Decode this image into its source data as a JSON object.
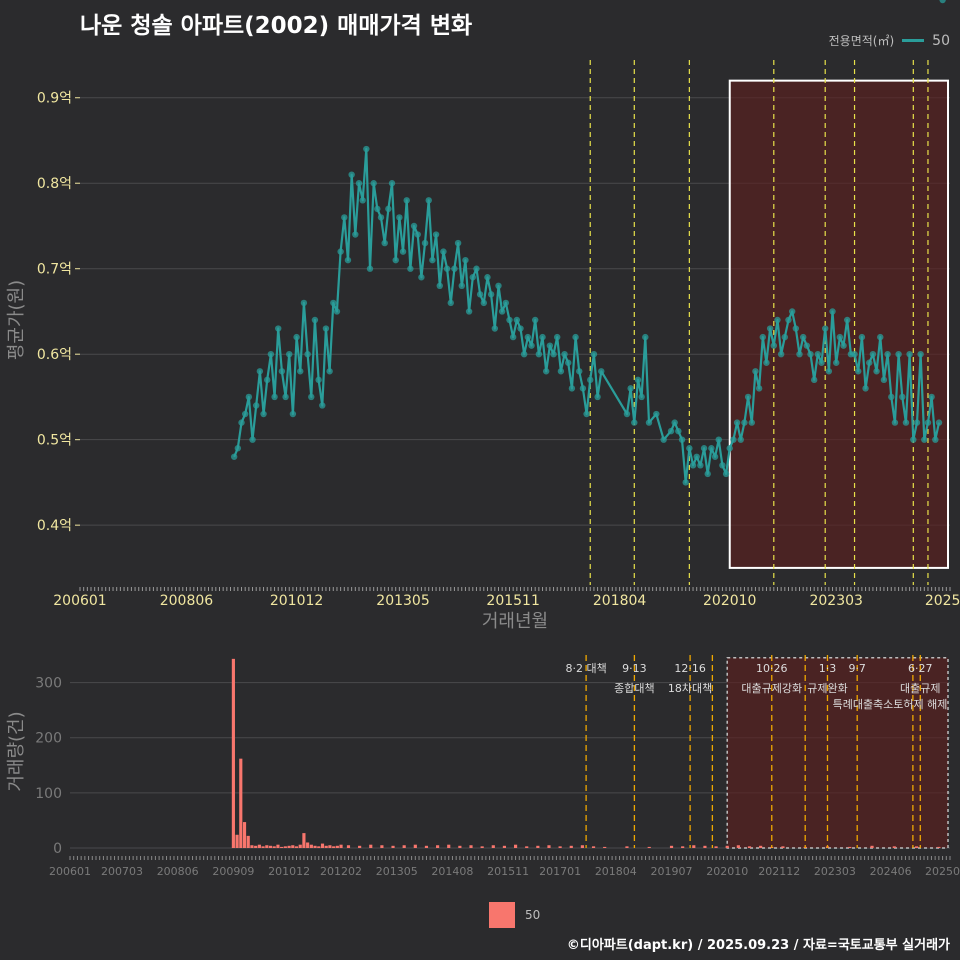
{
  "title": "나운 청솔 아파트(2002) 매매가격 변화",
  "legend": {
    "title": "전용면적(㎡)",
    "series_label": "50",
    "bottom_label": "50"
  },
  "footer": "©디아파트(dapt.kr) / 2025.09.23 / 자료=국토교통부 실거래가",
  "colors": {
    "background": "#2b2b2d",
    "price_line": "#2a9d9a",
    "price_point": "#2a9d9a",
    "volume_bar": "#f8766d",
    "policy_line_top": "#e8e24a",
    "policy_line_bottom": "#f0a800",
    "highlight_fill": "#5a1f1f",
    "highlight_border": "#ffffff",
    "grid": "#4a4a4d",
    "tick_label_top": "#f0e6a0",
    "tick_label_bottom": "#7a7a7a",
    "axis_title": "#8a8a8a"
  },
  "chart_data": [
    {
      "id": "price",
      "type": "line",
      "title": "나운 청솔 아파트(2002) 매매가격 변화",
      "xlabel": "거래년월",
      "ylabel": "평균가(원)",
      "x_range": [
        2006.0,
        2025.75
      ],
      "ylim": [
        0.33,
        0.95
      ],
      "y_ticks": [
        0.4,
        0.5,
        0.6,
        0.7,
        0.8,
        0.9
      ],
      "y_tick_labels": [
        "0.4억",
        "0.5억",
        "0.6억",
        "0.7억",
        "0.8억",
        "0.9억"
      ],
      "x_ticks": [
        2006.0,
        2008.417,
        2010.917,
        2013.333,
        2015.833,
        2018.25,
        2020.75,
        2023.167,
        2025.583
      ],
      "x_tick_labels": [
        "200601",
        "200806",
        "201012",
        "201305",
        "201511",
        "201804",
        "202010",
        "202303",
        "2025"
      ],
      "highlight": {
        "x0": 2020.75,
        "x1": 2025.75,
        "y0": 0.35,
        "y1": 0.92
      },
      "policy_lines_x": [
        2017.583,
        2018.583,
        2019.833,
        2021.75,
        2022.917,
        2023.583,
        2024.917,
        2025.25
      ],
      "series": [
        {
          "name": "50",
          "line_x": [
            2009.5,
            2009.583,
            2009.667,
            2009.75,
            2009.833,
            2009.917,
            2010.0,
            2010.083,
            2010.167,
            2010.25,
            2010.333,
            2010.417,
            2010.5,
            2010.583,
            2010.667,
            2010.75,
            2010.833,
            2010.917,
            2011.0,
            2011.083,
            2011.167,
            2011.25,
            2011.333,
            2011.417,
            2011.5,
            2011.583,
            2011.667,
            2011.75,
            2011.833,
            2011.917,
            2012.0,
            2012.083,
            2012.167,
            2012.25,
            2012.333,
            2012.417,
            2012.5,
            2012.583,
            2012.667,
            2012.75,
            2012.833,
            2012.917,
            2013.0,
            2013.083,
            2013.167,
            2013.25,
            2013.333,
            2013.417,
            2013.5,
            2013.583,
            2013.667,
            2013.75,
            2013.833,
            2013.917,
            2014.0,
            2014.083,
            2014.167,
            2014.25,
            2014.333,
            2014.417,
            2014.5,
            2014.583,
            2014.667,
            2014.75,
            2014.833,
            2014.917,
            2015.0,
            2015.083,
            2015.167,
            2015.25,
            2015.333,
            2015.417,
            2015.5,
            2015.583,
            2015.667,
            2015.75,
            2015.833,
            2015.917,
            2016.0,
            2016.083,
            2016.167,
            2016.25,
            2016.333,
            2016.417,
            2016.5,
            2016.583,
            2016.667,
            2016.75,
            2016.833,
            2016.917,
            2017.0,
            2017.083,
            2017.167,
            2017.25,
            2017.333,
            2017.417,
            2017.5,
            2017.583,
            2017.667,
            2017.75,
            2017.833,
            2018.417,
            2018.5,
            2018.583,
            2018.667,
            2018.75,
            2018.833,
            2018.917,
            2019.083,
            2019.25,
            2019.417,
            2019.5,
            2019.583,
            2019.667,
            2019.75,
            2019.833,
            2019.917,
            2020.0,
            2020.083,
            2020.167,
            2020.25,
            2020.333,
            2020.417,
            2020.5,
            2020.583,
            2020.667,
            2020.75,
            2020.833,
            2020.917,
            2021.0,
            2021.083,
            2021.167,
            2021.25,
            2021.333,
            2021.417,
            2021.5,
            2021.583,
            2021.667,
            2021.75,
            2021.833,
            2021.917,
            2022.0,
            2022.083,
            2022.167,
            2022.25,
            2022.333,
            2022.417,
            2022.5,
            2022.583,
            2022.667,
            2022.75,
            2022.833,
            2022.917,
            2023.0,
            2023.083,
            2023.167,
            2023.25,
            2023.333,
            2023.417,
            2023.5,
            2023.583,
            2023.667,
            2023.75,
            2023.833,
            2023.917,
            2024.0,
            2024.083,
            2024.167,
            2024.25,
            2024.333,
            2024.417,
            2024.5,
            2024.583,
            2024.667,
            2024.75,
            2024.833,
            2024.917,
            2025.0,
            2025.083,
            2025.167,
            2025.25,
            2025.333,
            2025.417,
            2025.5,
            2025.583
          ],
          "line_y": [
            0.48,
            0.49,
            0.52,
            0.53,
            0.55,
            0.5,
            0.54,
            0.58,
            0.53,
            0.57,
            0.6,
            0.55,
            0.63,
            0.58,
            0.55,
            0.6,
            0.53,
            0.62,
            0.58,
            0.66,
            0.6,
            0.55,
            0.64,
            0.57,
            0.54,
            0.63,
            0.58,
            0.66,
            0.65,
            0.72,
            0.76,
            0.71,
            0.81,
            0.74,
            0.8,
            0.78,
            0.84,
            0.7,
            0.8,
            0.77,
            0.76,
            0.73,
            0.77,
            0.8,
            0.71,
            0.76,
            0.72,
            0.78,
            0.7,
            0.75,
            0.74,
            0.69,
            0.73,
            0.78,
            0.71,
            0.74,
            0.68,
            0.72,
            0.7,
            0.66,
            0.7,
            0.73,
            0.68,
            0.71,
            0.65,
            0.69,
            0.7,
            0.67,
            0.66,
            0.69,
            0.67,
            0.63,
            0.68,
            0.65,
            0.66,
            0.64,
            0.62,
            0.64,
            0.63,
            0.6,
            0.62,
            0.61,
            0.64,
            0.6,
            0.62,
            0.58,
            0.61,
            0.6,
            0.62,
            0.58,
            0.6,
            0.59,
            0.56,
            0.62,
            0.58,
            0.56,
            0.53,
            0.57,
            0.6,
            0.55,
            0.58,
            0.53,
            0.56,
            0.52,
            0.57,
            0.55,
            0.62,
            0.52,
            0.53,
            0.5,
            0.51,
            0.52,
            0.51,
            0.5,
            0.45,
            0.49,
            0.47,
            0.48,
            0.47,
            0.49,
            0.46,
            0.49,
            0.48,
            0.5,
            0.47,
            0.46,
            0.49,
            0.5,
            0.52,
            0.5,
            0.52,
            0.55,
            0.52,
            0.58,
            0.56,
            0.62,
            0.59,
            0.63,
            0.61,
            0.64,
            0.6,
            0.62,
            0.64,
            0.65,
            0.63,
            0.6,
            0.62,
            0.61,
            0.6,
            0.57,
            0.6,
            0.59,
            0.63,
            0.58,
            0.65,
            0.59,
            0.62,
            0.61,
            0.64,
            0.6,
            0.6,
            0.58,
            0.62,
            0.56,
            0.59,
            0.6,
            0.58,
            0.62,
            0.57,
            0.6,
            0.55,
            0.52,
            0.6,
            0.55,
            0.52,
            0.6,
            0.5,
            0.52,
            0.6,
            0.5,
            0.52,
            0.55,
            0.5,
            0.52
          ]
        }
      ]
    },
    {
      "id": "volume",
      "type": "bar",
      "xlabel": "",
      "ylabel": "거래량(건)",
      "x_range": [
        2006.0,
        2025.75
      ],
      "ylim": [
        0,
        350
      ],
      "y_ticks": [
        0,
        100,
        200,
        300
      ],
      "y_tick_labels": [
        "0",
        "100",
        "200",
        "300"
      ],
      "x_ticks": [
        2006.0,
        2007.167,
        2008.417,
        2009.667,
        2010.917,
        2012.083,
        2013.333,
        2014.583,
        2015.833,
        2017.0,
        2018.25,
        2019.5,
        2020.75,
        2021.917,
        2023.167,
        2024.417,
        2025.583
      ],
      "x_tick_labels": [
        "200601",
        "200703",
        "200806",
        "200909",
        "201012",
        "201202",
        "201305",
        "201408",
        "201511",
        "201701",
        "201804",
        "201907",
        "202010",
        "202112",
        "202303",
        "202406",
        "20250"
      ],
      "highlight": {
        "x0": 2020.75,
        "x1": 2025.75,
        "y0": 0,
        "y1": 345
      },
      "policy_lines": [
        {
          "x": 2017.583,
          "line1": "8·2 대책",
          "line2": ""
        },
        {
          "x": 2018.667,
          "line1": "9·13",
          "line2": "종합대책"
        },
        {
          "x": 2019.917,
          "line1": "12·16",
          "line2": "18차대책"
        },
        {
          "x": 2020.417,
          "line1": "",
          "line2": ""
        },
        {
          "x": 2021.75,
          "line1": "10·26",
          "line2": "대출규제강화"
        },
        {
          "x": 2022.5,
          "line1": "",
          "line2": ""
        },
        {
          "x": 2023.0,
          "line1": "1·3",
          "line2": "규제완화"
        },
        {
          "x": 2023.667,
          "line1": "9·7",
          "line2": ""
        },
        {
          "x": 2024.917,
          "line1": "",
          "line2": ""
        },
        {
          "x": 2025.083,
          "line1": "6·27",
          "line2": "대출규제"
        }
      ],
      "annotation_extra": "특례대출축소토허제 해제",
      "series": [
        {
          "name": "50",
          "x": [
            2009.667,
            2009.75,
            2009.833,
            2009.917,
            2010.0,
            2010.083,
            2010.167,
            2010.25,
            2010.333,
            2010.417,
            2010.5,
            2010.583,
            2010.667,
            2010.75,
            2010.833,
            2010.917,
            2011.0,
            2011.083,
            2011.167,
            2011.25,
            2011.333,
            2011.417,
            2011.5,
            2011.583,
            2011.667,
            2011.75,
            2011.833,
            2011.917,
            2012.0,
            2012.083,
            2012.25,
            2012.5,
            2012.75,
            2013.0,
            2013.25,
            2013.5,
            2013.75,
            2014.0,
            2014.25,
            2014.5,
            2014.75,
            2015.0,
            2015.25,
            2015.5,
            2015.75,
            2016.0,
            2016.25,
            2016.5,
            2016.75,
            2017.0,
            2017.25,
            2017.5,
            2017.75,
            2018.0,
            2018.5,
            2019.0,
            2019.5,
            2019.75,
            2020.0,
            2020.25,
            2020.5,
            2020.75,
            2021.0,
            2021.25,
            2021.5,
            2021.75,
            2022.0,
            2022.5,
            2023.0,
            2023.5,
            2024.0,
            2024.5,
            2025.0,
            2025.5
          ],
          "values": [
            343,
            24,
            162,
            47,
            22,
            5,
            4,
            6,
            3,
            5,
            4,
            3,
            6,
            2,
            3,
            4,
            5,
            3,
            6,
            27,
            10,
            6,
            4,
            3,
            8,
            4,
            5,
            3,
            4,
            6,
            5,
            4,
            6,
            5,
            4,
            5,
            6,
            4,
            5,
            6,
            4,
            5,
            3,
            5,
            4,
            6,
            3,
            4,
            5,
            3,
            4,
            5,
            3,
            2,
            3,
            2,
            4,
            3,
            5,
            4,
            3,
            4,
            5,
            3,
            4,
            2,
            3,
            2,
            3,
            2,
            4,
            3,
            3,
            2
          ]
        }
      ]
    }
  ]
}
